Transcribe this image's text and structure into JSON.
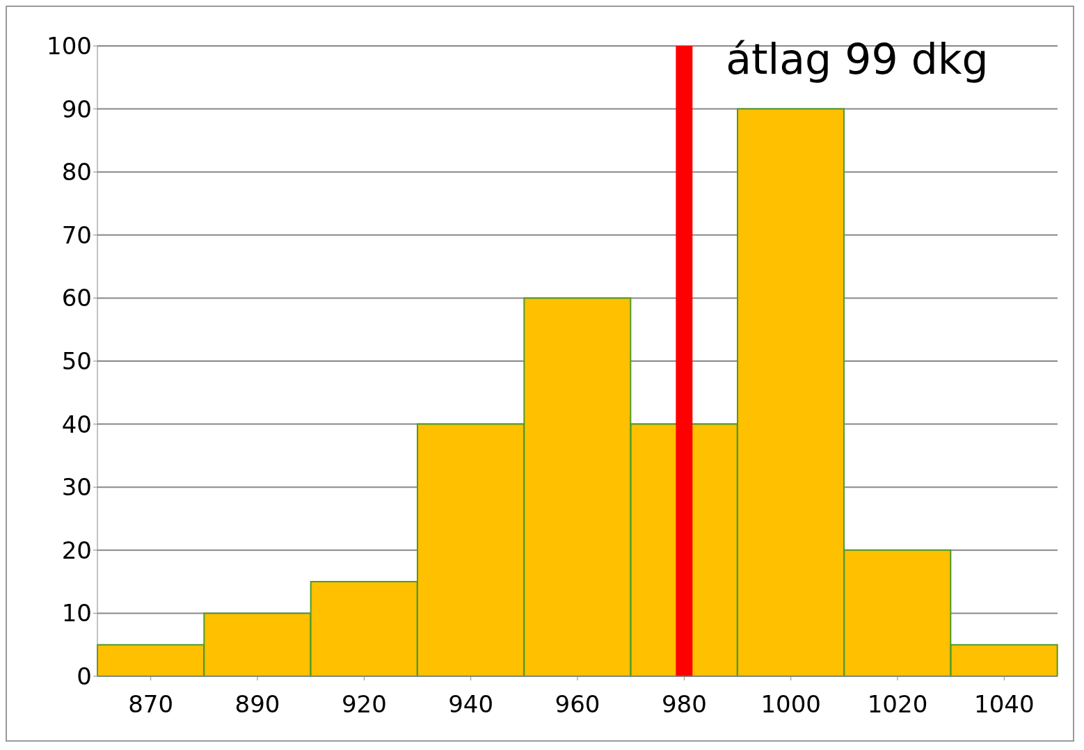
{
  "chart_data": {
    "type": "bar",
    "categories": [
      "870",
      "890",
      "920",
      "940",
      "960",
      "980",
      "1000",
      "1020",
      "1040"
    ],
    "values": [
      5,
      10,
      15,
      40,
      60,
      40,
      90,
      20,
      5
    ],
    "color": "#ffc000",
    "ylim": [
      0,
      100
    ],
    "yticks": [
      0,
      10,
      20,
      30,
      40,
      50,
      60,
      70,
      80,
      90,
      100
    ],
    "grid": "y",
    "legend": false,
    "ref_lines": [
      {
        "axis": "x",
        "value": "980",
        "label": "átlag 99 dkg",
        "color": "#ff0000"
      }
    ]
  }
}
